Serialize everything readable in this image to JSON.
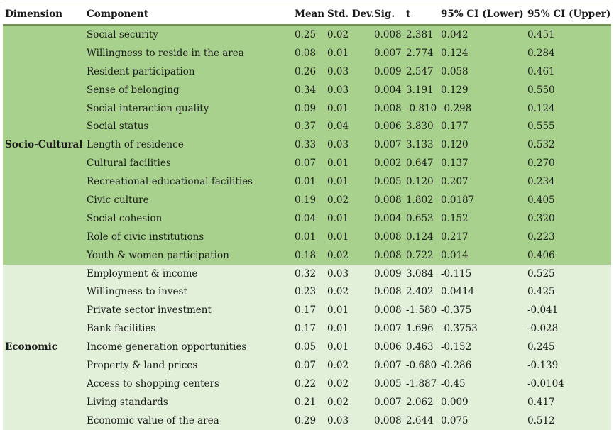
{
  "headers": [
    "Dimension",
    "Component",
    "Mean",
    "Std. Dev.",
    "Sig.",
    "t",
    "95% CI (Lower)",
    "95% CI (Upper)"
  ],
  "groups": [
    {
      "dimension": "Socio-Cultural",
      "rows": [
        {
          "component": "Social security",
          "mean": "0.25",
          "sd": "0.02",
          "sig": "0.008",
          "t": "2.381",
          "lower": "0.042",
          "upper": "0.451"
        },
        {
          "component": "Willingness to reside in the area",
          "mean": "0.08",
          "sd": "0.01",
          "sig": "0.007",
          "t": "2.774",
          "lower": "0.124",
          "upper": "0.284"
        },
        {
          "component": "Resident participation",
          "mean": "0.26",
          "sd": "0.03",
          "sig": "0.009",
          "t": "2.547",
          "lower": "0.058",
          "upper": "0.461"
        },
        {
          "component": "Sense of belonging",
          "mean": "0.34",
          "sd": "0.03",
          "sig": "0.004",
          "t": "3.191",
          "lower": "0.129",
          "upper": "0.550"
        },
        {
          "component": "Social interaction quality",
          "mean": "0.09",
          "sd": "0.01",
          "sig": "0.008",
          "t": "-0.810",
          "lower": "-0.298",
          "upper": "0.124"
        },
        {
          "component": "Social status",
          "mean": "0.37",
          "sd": "0.04",
          "sig": "0.006",
          "t": "3.830",
          "lower": "0.177",
          "upper": "0.555"
        },
        {
          "component": "Length of residence",
          "mean": "0.33",
          "sd": "0.03",
          "sig": "0.007",
          "t": "3.133",
          "lower": "0.120",
          "upper": "0.532"
        },
        {
          "component": "Cultural facilities",
          "mean": "0.07",
          "sd": "0.01",
          "sig": "0.002",
          "t": "0.647",
          "lower": "0.137",
          "upper": "0.270"
        },
        {
          "component": "Recreational-educational facilities",
          "mean": "0.01",
          "sd": "0.01",
          "sig": "0.005",
          "t": "0.120",
          "lower": "0.207",
          "upper": "0.234"
        },
        {
          "component": "Civic culture",
          "mean": "0.19",
          "sd": "0.02",
          "sig": "0.008",
          "t": "1.802",
          "lower": "0.0187",
          "upper": "0.405"
        },
        {
          "component": "Social cohesion",
          "mean": "0.04",
          "sd": "0.01",
          "sig": "0.004",
          "t": "0.653",
          "lower": "0.152",
          "upper": "0.320"
        },
        {
          "component": "Role of civic institutions",
          "mean": "0.01",
          "sd": "0.01",
          "sig": "0.008",
          "t": "0.124",
          "lower": "0.217",
          "upper": "0.223"
        },
        {
          "component": "Youth & women participation",
          "mean": "0.18",
          "sd": "0.02",
          "sig": "0.008",
          "t": "0.722",
          "lower": "0.014",
          "upper": "0.406"
        }
      ]
    },
    {
      "dimension": "Economic",
      "rows": [
        {
          "component": "Employment & income",
          "mean": "0.32",
          "sd": "0.03",
          "sig": "0.009",
          "t": "3.084",
          "lower": "-0.115",
          "upper": "0.525"
        },
        {
          "component": "Willingness to invest",
          "mean": "0.23",
          "sd": "0.02",
          "sig": "0.008",
          "t": "2.402",
          "lower": "0.0414",
          "upper": "0.425"
        },
        {
          "component": "Private sector investment",
          "mean": "0.17",
          "sd": "0.01",
          "sig": "0.008",
          "t": "-1.580",
          "lower": "-0.375",
          "upper": "-0.041"
        },
        {
          "component": "Bank facilities",
          "mean": "0.17",
          "sd": "0.01",
          "sig": "0.007",
          "t": "1.696",
          "lower": "-0.3753",
          "upper": "-0.028"
        },
        {
          "component": "Income generation opportunities",
          "mean": "0.05",
          "sd": "0.01",
          "sig": "0.006",
          "t": "0.463",
          "lower": "-0.152",
          "upper": "0.245"
        },
        {
          "component": "Property & land prices",
          "mean": "0.07",
          "sd": "0.02",
          "sig": "0.007",
          "t": "-0.680",
          "lower": "-0.286",
          "upper": "-0.139"
        },
        {
          "component": "Access to shopping centers",
          "mean": "0.22",
          "sd": "0.02",
          "sig": "0.005",
          "t": "-1.887",
          "lower": "-0.45",
          "upper": "-0.0104"
        },
        {
          "component": "Living standards",
          "mean": "0.21",
          "sd": "0.02",
          "sig": "0.007",
          "t": "2.062",
          "lower": "0.009",
          "upper": "0.417"
        },
        {
          "component": "Economic value of the area",
          "mean": "0.29",
          "sd": "0.03",
          "sig": "0.008",
          "t": "2.644",
          "lower": "0.075",
          "upper": "0.512"
        }
      ]
    }
  ],
  "colors": {
    "socio_cultural_bg": "#a9d18e",
    "economic_bg": "#e2efd9",
    "header_rule": "#6f8f55"
  }
}
